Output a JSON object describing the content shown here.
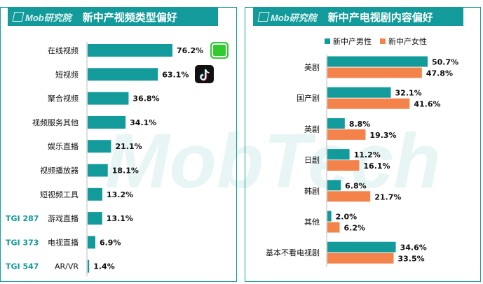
{
  "left_panel": {
    "logo_text": "Mob研究院",
    "title": "新中产视频类型偏好",
    "tgi_labels": [
      "TGI 287",
      "TGI 373",
      "TGI 547"
    ],
    "app_icons": [
      "iqiyi-app-icon",
      "tiktok-app-icon"
    ]
  },
  "right_panel": {
    "logo_text": "Mob研究院",
    "title": "新中产电视剧内容偏好"
  },
  "watermark_text": "MobTech",
  "colors": {
    "teal": "#139a9a",
    "orange": "#f4834b",
    "border": "#1a9a9a"
  },
  "chart_data": [
    {
      "type": "bar",
      "orientation": "horizontal",
      "title": "新中产视频类型偏好",
      "categories": [
        "在线视频",
        "短视频",
        "聚合视频",
        "视频服务其他",
        "娱乐直播",
        "视频播放器",
        "短视频工具",
        "游戏直播",
        "电视直播",
        "AR/VR"
      ],
      "values": [
        76.2,
        63.1,
        36.8,
        34.1,
        21.1,
        18.1,
        13.2,
        13.1,
        6.9,
        1.4
      ],
      "value_labels": [
        "76.2%",
        "63.1%",
        "36.8%",
        "34.1%",
        "21.1%",
        "18.1%",
        "13.2%",
        "13.1%",
        "6.9%",
        "1.4%"
      ],
      "annotations": [
        {
          "category": "游戏直播",
          "text": "TGI 287"
        },
        {
          "category": "电视直播",
          "text": "TGI 373"
        },
        {
          "category": "AR/VR",
          "text": "TGI 547"
        }
      ],
      "color": "#139a9a",
      "grid": false
    },
    {
      "type": "bar",
      "orientation": "horizontal",
      "title": "新中产电视剧内容偏好",
      "categories": [
        "美剧",
        "国产剧",
        "英剧",
        "日剧",
        "韩剧",
        "其他",
        "基本不看电视剧"
      ],
      "series": [
        {
          "name": "新中产男性",
          "color": "#139a9a",
          "values": [
            50.7,
            32.1,
            8.8,
            11.2,
            6.8,
            2.0,
            34.6
          ],
          "value_labels": [
            "50.7%",
            "32.1%",
            "8.8%",
            "11.2%",
            "6.8%",
            "2.0%",
            "34.6%"
          ]
        },
        {
          "name": "新中产女性",
          "color": "#f4834b",
          "values": [
            47.8,
            41.6,
            19.3,
            16.1,
            21.7,
            6.2,
            33.5
          ],
          "value_labels": [
            "47.8%",
            "41.6%",
            "19.3%",
            "16.1%",
            "21.7%",
            "6.2%",
            "33.5%"
          ]
        }
      ],
      "legend": "top",
      "grid": false
    }
  ]
}
